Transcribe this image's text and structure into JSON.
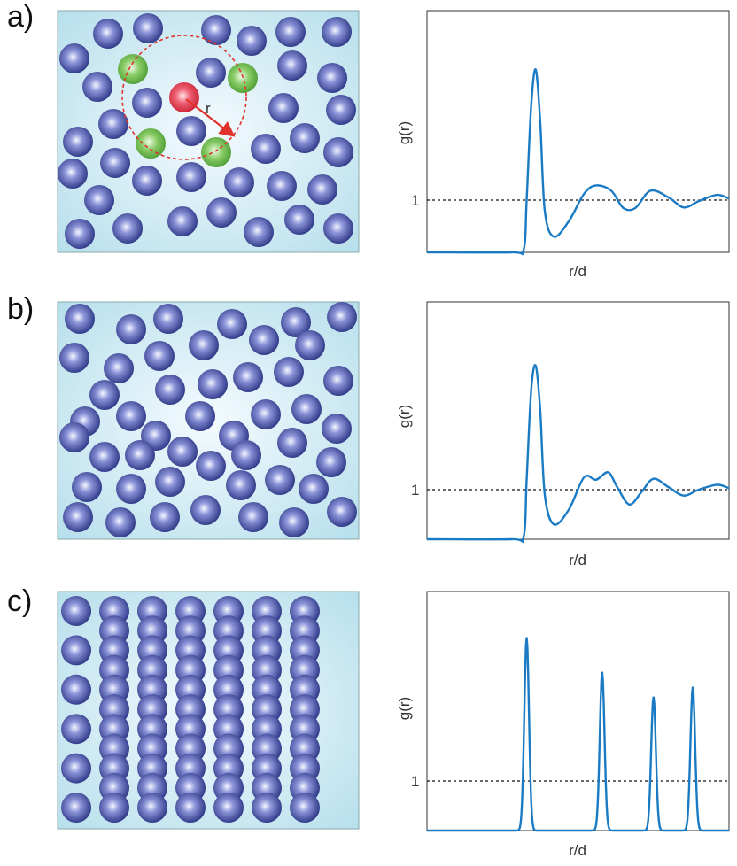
{
  "panels": [
    {
      "label": "a)",
      "state": "liquid",
      "annotation": "r",
      "rdf": {
        "ylabel": "g(r)",
        "xlabel": "r/d",
        "reference_tick": "1",
        "reference_value": 1,
        "ymax": 3.6,
        "curve": [
          [
            0.0,
            0
          ],
          [
            0.28,
            0
          ],
          [
            0.32,
            0.05
          ],
          [
            0.33,
            1.0
          ],
          [
            0.345,
            2.8
          ],
          [
            0.36,
            3.5
          ],
          [
            0.375,
            2.5
          ],
          [
            0.39,
            0.8
          ],
          [
            0.42,
            0.3
          ],
          [
            0.47,
            0.6
          ],
          [
            0.52,
            1.12
          ],
          [
            0.56,
            1.28
          ],
          [
            0.61,
            1.18
          ],
          [
            0.65,
            0.85
          ],
          [
            0.69,
            0.85
          ],
          [
            0.74,
            1.18
          ],
          [
            0.8,
            1.05
          ],
          [
            0.85,
            0.86
          ],
          [
            0.9,
            0.98
          ],
          [
            0.96,
            1.1
          ],
          [
            1.0,
            1.03
          ]
        ]
      }
    },
    {
      "label": "b)",
      "state": "dense liquid",
      "rdf": {
        "ylabel": "g(r)",
        "xlabel": "r/d",
        "reference_tick": "1",
        "reference_value": 1,
        "ymax": 3.6,
        "curve": [
          [
            0.0,
            0
          ],
          [
            0.28,
            0
          ],
          [
            0.32,
            0.05
          ],
          [
            0.33,
            1.2
          ],
          [
            0.345,
            3.0
          ],
          [
            0.36,
            3.5
          ],
          [
            0.375,
            2.6
          ],
          [
            0.39,
            0.9
          ],
          [
            0.42,
            0.3
          ],
          [
            0.47,
            0.6
          ],
          [
            0.52,
            1.25
          ],
          [
            0.56,
            1.2
          ],
          [
            0.6,
            1.35
          ],
          [
            0.63,
            1.05
          ],
          [
            0.67,
            0.7
          ],
          [
            0.71,
            0.95
          ],
          [
            0.75,
            1.22
          ],
          [
            0.8,
            1.05
          ],
          [
            0.85,
            0.88
          ],
          [
            0.9,
            1.0
          ],
          [
            0.96,
            1.1
          ],
          [
            1.0,
            1.03
          ]
        ]
      }
    },
    {
      "label": "c)",
      "state": "crystal",
      "rdf": {
        "ylabel": "g(r)",
        "xlabel": "r/d",
        "reference_tick": "1",
        "reference_value": 1,
        "ymax": 4.2,
        "peaks": [
          {
            "x": 0.33,
            "y": 3.9
          },
          {
            "x": 0.58,
            "y": 3.2
          },
          {
            "x": 0.75,
            "y": 2.7
          },
          {
            "x": 0.88,
            "y": 2.9
          }
        ]
      }
    }
  ],
  "colors": {
    "box_fill": "#bfe3ef",
    "sphere_dark": "#2c3590",
    "sphere_light": "#eef3ff",
    "center_sphere": "#e8384c",
    "neighbor_sphere": "#6ab84a",
    "curve": "#1a7bc4",
    "arrow": "#e0332b",
    "circle": "#e0332b",
    "dotted": "#111111"
  }
}
